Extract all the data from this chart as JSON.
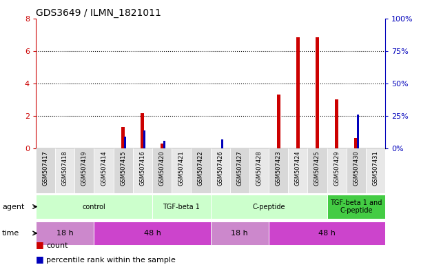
{
  "title": "GDS3649 / ILMN_1821011",
  "samples": [
    "GSM507417",
    "GSM507418",
    "GSM507419",
    "GSM507414",
    "GSM507415",
    "GSM507416",
    "GSM507420",
    "GSM507421",
    "GSM507422",
    "GSM507426",
    "GSM507427",
    "GSM507428",
    "GSM507423",
    "GSM507424",
    "GSM507425",
    "GSM507429",
    "GSM507430",
    "GSM507431"
  ],
  "count": [
    0,
    0,
    0,
    0,
    1.3,
    2.15,
    0.3,
    0,
    0,
    0,
    0,
    0,
    3.3,
    6.85,
    6.85,
    3.0,
    0.65,
    0
  ],
  "percentile_pct": [
    0,
    0,
    0,
    0,
    9,
    14,
    6,
    0,
    0,
    7,
    0,
    0,
    0,
    0,
    0,
    0,
    26,
    0
  ],
  "ylim_left": [
    0,
    8
  ],
  "ylim_right": [
    0,
    100
  ],
  "yticks_left": [
    0,
    2,
    4,
    6,
    8
  ],
  "yticks_right": [
    0,
    25,
    50,
    75,
    100
  ],
  "bar_color_red": "#cc0000",
  "bar_color_blue": "#0000bb",
  "agent_groups": [
    {
      "label": "control",
      "start": 0,
      "end": 5,
      "color": "#ccffcc"
    },
    {
      "label": "TGF-beta 1",
      "start": 6,
      "end": 8,
      "color": "#ccffcc"
    },
    {
      "label": "C-peptide",
      "start": 9,
      "end": 14,
      "color": "#ccffcc"
    },
    {
      "label": "TGF-beta 1 and\nC-peptide",
      "start": 15,
      "end": 17,
      "color": "#44cc44"
    }
  ],
  "time_groups": [
    {
      "label": "18 h",
      "start": 0,
      "end": 2,
      "color": "#cc88cc"
    },
    {
      "label": "48 h",
      "start": 3,
      "end": 8,
      "color": "#cc44cc"
    },
    {
      "label": "18 h",
      "start": 9,
      "end": 11,
      "color": "#cc88cc"
    },
    {
      "label": "48 h",
      "start": 12,
      "end": 17,
      "color": "#cc44cc"
    }
  ],
  "legend_items": [
    {
      "label": "count",
      "color": "#cc0000"
    },
    {
      "label": "percentile rank within the sample",
      "color": "#0000bb"
    }
  ],
  "background_color": "#ffffff",
  "tick_label_color_left": "#cc0000",
  "tick_label_color_right": "#0000bb",
  "grid_yticks": [
    2,
    4,
    6
  ],
  "col_bg_even": "#d8d8d8",
  "col_bg_odd": "#e8e8e8"
}
